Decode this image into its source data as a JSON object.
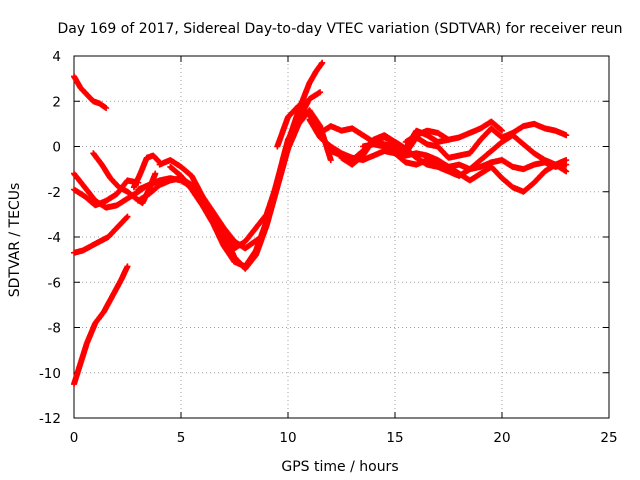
{
  "chart_data": {
    "type": "scatter",
    "title": "Day 169 of 2017, Sidereal Day-to-day VTEC variation (SDTVAR) for receiver reun",
    "xlabel": "GPS time / hours",
    "ylabel": "SDTVAR / TECUs",
    "xlim": [
      0,
      25
    ],
    "ylim": [
      -12,
      4
    ],
    "xticks": [
      "0",
      "5",
      "10",
      "15",
      "20",
      "25"
    ],
    "yticks": [
      "4",
      "2",
      "0",
      "-2",
      "-4",
      "-6",
      "-8",
      "-10",
      "-12"
    ],
    "grid": true,
    "marker": "+",
    "color": "#ff0000",
    "series": [
      {
        "x": [
          0,
          0.3,
          0.6,
          0.9,
          1.2,
          1.5
        ],
        "y": [
          3.1,
          2.6,
          2.3,
          2.0,
          1.9,
          1.7
        ]
      },
      {
        "x": [
          0,
          0.3,
          0.6,
          1.0,
          1.4,
          1.8,
          2.2,
          2.5
        ],
        "y": [
          -10.5,
          -9.6,
          -8.7,
          -7.8,
          -7.3,
          -6.6,
          -5.9,
          -5.3
        ]
      },
      {
        "x": [
          0,
          0.4,
          0.8,
          1.2,
          1.6,
          2.0,
          2.5
        ],
        "y": [
          -4.7,
          -4.6,
          -4.4,
          -4.2,
          -4.0,
          -3.6,
          -3.1
        ]
      },
      {
        "x": [
          0,
          0.5,
          1.0,
          1.5,
          2.0,
          2.5,
          3.0
        ],
        "y": [
          -1.9,
          -2.2,
          -2.6,
          -2.4,
          -2.1,
          -1.5,
          -1.6
        ]
      },
      {
        "x": [
          0,
          0.5,
          1.0,
          1.5,
          2.0,
          2.5,
          3.0,
          3.3
        ],
        "y": [
          -1.2,
          -1.8,
          -2.4,
          -2.7,
          -2.6,
          -2.3,
          -2.0,
          -1.8
        ]
      },
      {
        "x": [
          0.9,
          1.3,
          1.7,
          2.1,
          2.5,
          2.9,
          3.2,
          3.5,
          3.8
        ],
        "y": [
          -0.3,
          -0.8,
          -1.4,
          -1.8,
          -2.0,
          -2.3,
          -2.5,
          -1.9,
          -1.2
        ]
      },
      {
        "x": [
          2.8,
          3.1,
          3.4,
          3.7,
          4.0
        ],
        "y": [
          -1.8,
          -1.2,
          -0.5,
          -0.4,
          -0.7
        ]
      },
      {
        "x": [
          3.0,
          3.5,
          4.0,
          4.5,
          5.0,
          5.5,
          6.0,
          6.5,
          7.0,
          7.5,
          8.0,
          8.5,
          9.0,
          9.5,
          10.0,
          10.5,
          11.0,
          11.3,
          11.6
        ],
        "y": [
          -1.9,
          -1.7,
          -1.5,
          -1.4,
          -1.5,
          -1.8,
          -2.4,
          -3.1,
          -3.9,
          -4.5,
          -4.2,
          -3.6,
          -3.0,
          -1.6,
          0.2,
          1.6,
          2.8,
          3.3,
          3.7
        ]
      },
      {
        "x": [
          3.0,
          3.5,
          4.0,
          4.5,
          5.0,
          5.5,
          6.0,
          6.5,
          7.0,
          7.5,
          8.0,
          8.3,
          8.6
        ],
        "y": [
          -2.4,
          -2.1,
          -1.7,
          -1.5,
          -1.4,
          -1.7,
          -2.2,
          -2.9,
          -3.6,
          -4.2,
          -4.5,
          -4.3,
          -4.1
        ]
      },
      {
        "x": [
          4.0,
          4.5,
          5.0,
          5.5,
          6.0,
          6.5,
          7.0,
          7.5,
          8.0,
          8.5,
          9.0,
          9.5,
          10.0,
          10.5,
          11.0,
          11.5,
          12.0
        ],
        "y": [
          -0.8,
          -0.6,
          -0.9,
          -1.3,
          -2.2,
          -3.1,
          -3.9,
          -4.9,
          -5.4,
          -4.8,
          -3.5,
          -1.8,
          -0.1,
          1.0,
          1.6,
          0.9,
          -0.6
        ]
      },
      {
        "x": [
          4.5,
          5.0,
          5.5,
          6.0,
          6.5,
          7.0,
          7.5,
          8.0,
          8.5,
          9.0,
          9.5,
          10.0,
          10.5,
          11.0,
          11.5
        ],
        "y": [
          -0.9,
          -1.3,
          -1.9,
          -2.6,
          -3.4,
          -4.4,
          -5.1,
          -5.3,
          -4.6,
          -3.3,
          -1.5,
          0.3,
          1.2,
          2.1,
          2.4
        ]
      },
      {
        "x": [
          9.5,
          10.0,
          10.5,
          11.0,
          11.5,
          12.0,
          12.5,
          13.0,
          13.5,
          14.0,
          14.5,
          15.0,
          15.5,
          16.0,
          16.5,
          17.0,
          17.5,
          18.0,
          18.5,
          19.0,
          19.5,
          20.0,
          20.5,
          21.0,
          21.5,
          22.0,
          22.5,
          23.0
        ],
        "y": [
          0.0,
          1.3,
          1.8,
          1.4,
          0.6,
          0.9,
          0.7,
          0.8,
          0.5,
          0.2,
          0.1,
          0.0,
          -0.3,
          0.4,
          0.1,
          0.0,
          -0.5,
          -0.4,
          -0.3,
          0.3,
          0.8,
          0.4,
          0.6,
          0.9,
          1.0,
          0.8,
          0.7,
          0.5
        ]
      },
      {
        "x": [
          11.0,
          11.5,
          12.0,
          12.5,
          13.0,
          13.5,
          14.0,
          14.5,
          15.0,
          15.5,
          16.0,
          16.5,
          17.0,
          17.5,
          18.0,
          18.5,
          19.0,
          19.5,
          20.0,
          20.5,
          21.0,
          21.5,
          22.0,
          22.5,
          23.0
        ],
        "y": [
          1.2,
          0.4,
          0.0,
          -0.3,
          -0.5,
          -0.6,
          -0.4,
          -0.2,
          -0.3,
          -0.7,
          -0.8,
          -0.6,
          -0.7,
          -0.9,
          -0.8,
          -1.0,
          -0.9,
          -0.7,
          -0.6,
          -0.9,
          -1.0,
          -0.8,
          -0.7,
          -0.9,
          -0.8
        ]
      },
      {
        "x": [
          12.0,
          12.5,
          13.0,
          13.5,
          14.0,
          14.5,
          15.0,
          15.5,
          16.0,
          16.5,
          17.0,
          17.5,
          18.0,
          18.5,
          19.0,
          19.5,
          20.0,
          20.5,
          21.0,
          21.5,
          22.0,
          22.5,
          23.0
        ],
        "y": [
          -0.2,
          -0.4,
          -0.6,
          -0.2,
          0.3,
          0.5,
          0.2,
          -0.1,
          -0.5,
          -0.8,
          -0.9,
          -1.1,
          -1.3,
          -1.0,
          -0.6,
          -0.2,
          0.2,
          0.5,
          0.1,
          -0.3,
          -0.6,
          -0.8,
          -1.1
        ]
      },
      {
        "x": [
          13.5,
          14.0,
          14.5,
          15.0,
          15.5,
          16.0,
          16.5,
          17.0,
          17.5,
          18.0,
          18.5,
          19.0,
          19.5,
          20.0,
          20.5,
          21.0,
          21.5,
          22.0,
          22.5,
          23.0
        ],
        "y": [
          0.0,
          0.1,
          0.0,
          -0.2,
          -0.4,
          -0.3,
          -0.4,
          -0.6,
          -0.9,
          -1.2,
          -1.5,
          -1.2,
          -0.9,
          -1.4,
          -1.8,
          -2.0,
          -1.6,
          -1.1,
          -0.8,
          -0.6
        ]
      },
      {
        "x": [
          12.5,
          13.0,
          13.5,
          14.0,
          14.5,
          15.0,
          15.5,
          16.0,
          16.5,
          17.0,
          17.5
        ],
        "y": [
          -0.5,
          -0.8,
          -0.4,
          0.3,
          0.4,
          0.2,
          -0.1,
          0.7,
          0.5,
          0.2,
          0.3
        ]
      },
      {
        "x": [
          15.5,
          16.0,
          16.5,
          17.0,
          17.5,
          18.0,
          18.5,
          19.0,
          19.5,
          20.0
        ],
        "y": [
          0.2,
          0.5,
          0.7,
          0.6,
          0.3,
          0.4,
          0.6,
          0.8,
          1.1,
          0.7
        ]
      }
    ]
  }
}
